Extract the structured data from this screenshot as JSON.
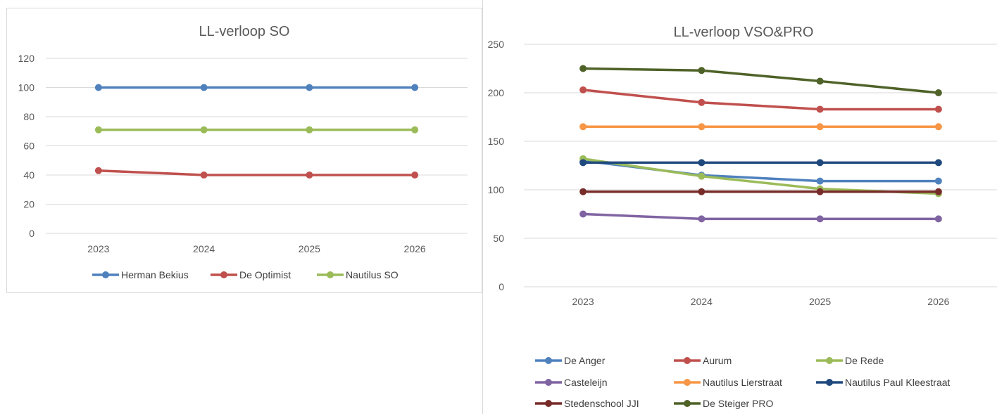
{
  "chart_data": [
    {
      "type": "line",
      "title": "LL-verloop SO",
      "categories": [
        "2023",
        "2024",
        "2025",
        "2026"
      ],
      "ylim": [
        0,
        120
      ],
      "yticks": [
        "0",
        "20",
        "40",
        "60",
        "80",
        "100",
        "120"
      ],
      "grid": true,
      "legend_position": "bottom",
      "series": [
        {
          "name": "Herman Bekius",
          "color": "#4f81bd",
          "values": [
            100,
            100,
            100,
            100
          ]
        },
        {
          "name": "De Optimist",
          "color": "#c0504d",
          "values": [
            43,
            40,
            40,
            40
          ]
        },
        {
          "name": "Nautilus SO",
          "color": "#9bbb59",
          "values": [
            71,
            71,
            71,
            71
          ]
        }
      ]
    },
    {
      "type": "line",
      "title": "LL-verloop VSO&PRO",
      "categories": [
        "2023",
        "2024",
        "2025",
        "2026"
      ],
      "ylim": [
        0,
        250
      ],
      "yticks": [
        "0",
        "50",
        "100",
        "150",
        "200",
        "250"
      ],
      "grid": true,
      "legend_position": "bottom",
      "series": [
        {
          "name": "De Anger",
          "color": "#4f81bd",
          "values": [
            130,
            115,
            109,
            109
          ]
        },
        {
          "name": "Aurum",
          "color": "#c0504d",
          "values": [
            203,
            190,
            183,
            183
          ]
        },
        {
          "name": "De Rede",
          "color": "#9bbb59",
          "values": [
            132,
            114,
            101,
            96
          ]
        },
        {
          "name": "Casteleijn",
          "color": "#8064a2",
          "values": [
            75,
            70,
            70,
            70
          ]
        },
        {
          "name": "Nautilus Lierstraat",
          "color": "#f79646",
          "values": [
            165,
            165,
            165,
            165
          ]
        },
        {
          "name": "Nautilus Paul Kleestraat",
          "color": "#1f497d",
          "values": [
            128,
            128,
            128,
            128
          ]
        },
        {
          "name": "Stedenschool JJI",
          "color": "#772c2a",
          "values": [
            98,
            98,
            98,
            98
          ]
        },
        {
          "name": "De Steiger PRO",
          "color": "#4f6228",
          "values": [
            225,
            223,
            212,
            200
          ]
        }
      ]
    }
  ]
}
